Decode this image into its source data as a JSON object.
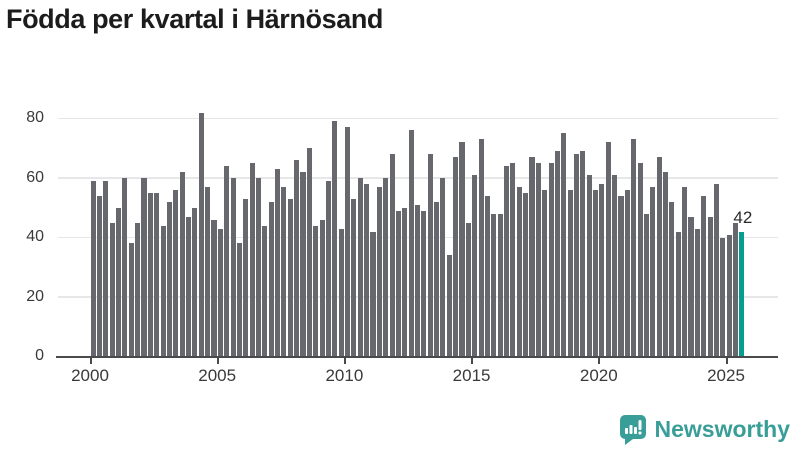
{
  "title": "Födda per kvartal i Härnösand",
  "annotation": {
    "text": "42"
  },
  "logo": {
    "text": "Newsworthy",
    "icon": "newsworthy-bubble-bar-chart-icon"
  },
  "colors": {
    "background": "#ffffff",
    "bar": "#67676e",
    "highlight": "#079c92",
    "grid": "#e7e7e7",
    "axis": "#4a4a4a",
    "tick_label": "#3a3a3a",
    "title": "#1c1c1c",
    "annotation": "#2b2b2b",
    "logo_teal": "#3a9e98"
  },
  "chart_data": {
    "type": "bar",
    "title": "Födda per kvartal i Härnösand",
    "xlabel": "",
    "ylabel": "",
    "ylim": [
      0,
      80
    ],
    "yticks": [
      0,
      20,
      40,
      60,
      80
    ],
    "xticks": [
      2000,
      2005,
      2010,
      2015,
      2020,
      2025
    ],
    "grid": "horizontal",
    "legend": "none",
    "highlight_index": 102,
    "highlight_value_label": "42",
    "categories": [
      "2000 Q1",
      "2000 Q2",
      "2000 Q3",
      "2000 Q4",
      "2001 Q1",
      "2001 Q2",
      "2001 Q3",
      "2001 Q4",
      "2002 Q1",
      "2002 Q2",
      "2002 Q3",
      "2002 Q4",
      "2003 Q1",
      "2003 Q2",
      "2003 Q3",
      "2003 Q4",
      "2004 Q1",
      "2004 Q2",
      "2004 Q3",
      "2004 Q4",
      "2005 Q1",
      "2005 Q2",
      "2005 Q3",
      "2005 Q4",
      "2006 Q1",
      "2006 Q2",
      "2006 Q3",
      "2006 Q4",
      "2007 Q1",
      "2007 Q2",
      "2007 Q3",
      "2007 Q4",
      "2008 Q1",
      "2008 Q2",
      "2008 Q3",
      "2008 Q4",
      "2009 Q1",
      "2009 Q2",
      "2009 Q3",
      "2009 Q4",
      "2010 Q1",
      "2010 Q2",
      "2010 Q3",
      "2010 Q4",
      "2011 Q1",
      "2011 Q2",
      "2011 Q3",
      "2011 Q4",
      "2012 Q1",
      "2012 Q2",
      "2012 Q3",
      "2012 Q4",
      "2013 Q1",
      "2013 Q2",
      "2013 Q3",
      "2013 Q4",
      "2014 Q1",
      "2014 Q2",
      "2014 Q3",
      "2014 Q4",
      "2015 Q1",
      "2015 Q2",
      "2015 Q3",
      "2015 Q4",
      "2016 Q1",
      "2016 Q2",
      "2016 Q3",
      "2016 Q4",
      "2017 Q1",
      "2017 Q2",
      "2017 Q3",
      "2017 Q4",
      "2018 Q1",
      "2018 Q2",
      "2018 Q3",
      "2018 Q4",
      "2019 Q1",
      "2019 Q2",
      "2019 Q3",
      "2019 Q4",
      "2020 Q1",
      "2020 Q2",
      "2020 Q3",
      "2020 Q4",
      "2021 Q1",
      "2021 Q2",
      "2021 Q3",
      "2021 Q4",
      "2022 Q1",
      "2022 Q2",
      "2022 Q3",
      "2022 Q4",
      "2023 Q1",
      "2023 Q2",
      "2023 Q3",
      "2023 Q4",
      "2024 Q1",
      "2024 Q2",
      "2024 Q3",
      "2024 Q4",
      "2025 Q1",
      "2025 Q2",
      "2025 Q3"
    ],
    "values": [
      59,
      54,
      59,
      45,
      50,
      60,
      38,
      45,
      60,
      55,
      55,
      44,
      52,
      56,
      62,
      47,
      50,
      82,
      57,
      46,
      43,
      64,
      60,
      38,
      53,
      65,
      60,
      44,
      52,
      63,
      57,
      53,
      66,
      62,
      70,
      44,
      46,
      59,
      79,
      43,
      77,
      53,
      60,
      58,
      42,
      57,
      60,
      68,
      49,
      50,
      76,
      51,
      49,
      68,
      52,
      60,
      34,
      67,
      72,
      45,
      61,
      73,
      54,
      48,
      48,
      64,
      65,
      57,
      55,
      67,
      65,
      56,
      65,
      69,
      75,
      56,
      68,
      69,
      61,
      56,
      58,
      72,
      61,
      54,
      56,
      73,
      65,
      48,
      57,
      67,
      62,
      52,
      42,
      57,
      47,
      43,
      54,
      47,
      58,
      40,
      41,
      45,
      42
    ]
  }
}
